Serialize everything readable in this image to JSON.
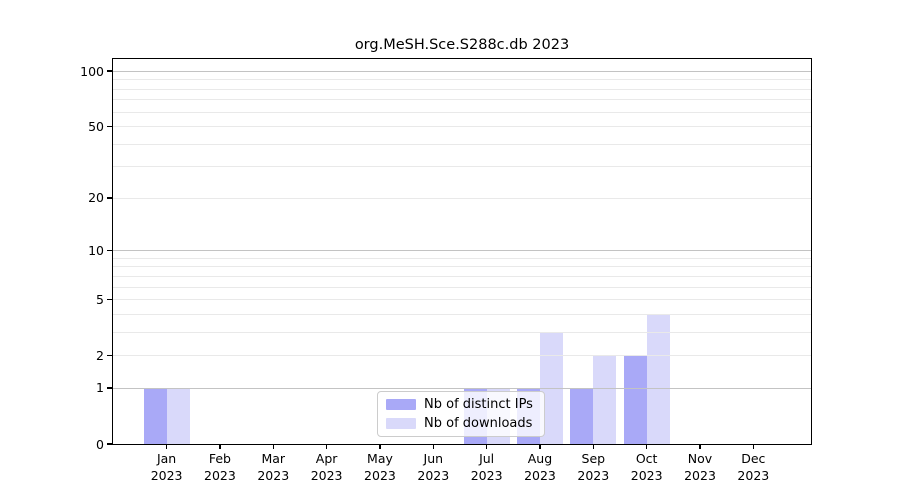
{
  "chart_data": {
    "type": "bar",
    "title": "org.MeSH.Sce.S288c.db 2023",
    "categories": [
      "Jan",
      "Feb",
      "Mar",
      "Apr",
      "May",
      "Jun",
      "Jul",
      "Aug",
      "Sep",
      "Oct",
      "Nov",
      "Dec"
    ],
    "x_year_label": "2023",
    "series": [
      {
        "name": "Nb of distinct IPs",
        "color": "#a9a9f7",
        "values": [
          1,
          0,
          0,
          0,
          0,
          0,
          1,
          1,
          1,
          2,
          0,
          0
        ]
      },
      {
        "name": "Nb of downloads",
        "color": "#d9d9fa",
        "values": [
          1,
          0,
          0,
          0,
          0,
          0,
          1,
          3,
          2,
          4,
          0,
          0
        ]
      }
    ],
    "yscale": "log1p",
    "ylim": [
      0,
      116
    ],
    "y_tick_labels": [
      100,
      50,
      20,
      10,
      5,
      2,
      1,
      0
    ],
    "y_major_gridlines": [
      1,
      10,
      100
    ],
    "y_minor_gridlines": [
      2,
      3,
      4,
      5,
      6,
      7,
      8,
      9,
      20,
      30,
      40,
      50,
      60,
      70,
      80,
      90
    ],
    "grid": "on",
    "legend_position": "lower center"
  },
  "style": {
    "background": "#ffffff",
    "axis_color": "#000000",
    "grid_major_color": "#c3c3c3",
    "grid_minor_color": "#e9e9e9",
    "legend_border_color": "#cccccc",
    "bar_distinct_ips_color": "#a9a9f7",
    "bar_downloads_color": "#d9d9fa"
  }
}
